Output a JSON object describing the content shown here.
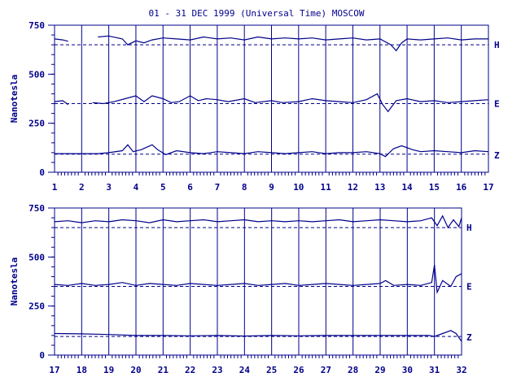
{
  "chart_data": {
    "type": "line",
    "title": "01 - 31 DEC 1999 (Universal Time) MOSCOW",
    "ylabel": "Nanotesla",
    "ylim": [
      0,
      750
    ],
    "yticks": [
      "0",
      "250",
      "500",
      "750"
    ],
    "y_minor_step": 50,
    "line_color": "#00008b",
    "grid": "vertical lines at each day",
    "panels": [
      {
        "xlim": [
          1,
          17
        ],
        "xticks": [
          "1",
          "2",
          "3",
          "4",
          "5",
          "6",
          "7",
          "8",
          "9",
          "10",
          "11",
          "12",
          "13",
          "14",
          "15",
          "16",
          "17"
        ],
        "series": [
          {
            "name": "H",
            "baseline": 650,
            "x": [
              1.0,
              1.3,
              1.5,
              1.6,
              2.6,
              3.0,
              3.5,
              3.7,
              4.0,
              4.3,
              4.6,
              5.0,
              5.5,
              6.0,
              6.5,
              7.0,
              7.5,
              8.0,
              8.5,
              9.0,
              9.5,
              10.0,
              10.5,
              11.0,
              11.5,
              12.0,
              12.5,
              13.0,
              13.4,
              13.6,
              13.8,
              14.0,
              14.5,
              15.0,
              15.5,
              16.0,
              16.5,
              17.0
            ],
            "values": [
              680,
              675,
              668,
              null,
              690,
              695,
              680,
              650,
              670,
              660,
              675,
              685,
              680,
              675,
              690,
              680,
              685,
              675,
              690,
              680,
              685,
              680,
              685,
              675,
              680,
              685,
              675,
              680,
              650,
              620,
              660,
              680,
              675,
              680,
              685,
              675,
              680,
              680
            ]
          },
          {
            "name": "E",
            "baseline": 350,
            "x": [
              1.0,
              1.3,
              1.5,
              1.6,
              2.4,
              2.8,
              3.2,
              3.6,
              4.0,
              4.3,
              4.6,
              5.0,
              5.3,
              5.6,
              6.0,
              6.3,
              6.6,
              7.0,
              7.4,
              8.0,
              8.4,
              9.0,
              9.4,
              10.0,
              10.5,
              11.0,
              11.5,
              12.0,
              12.5,
              12.9,
              13.1,
              13.3,
              13.6,
              14.0,
              14.5,
              15.0,
              15.5,
              16.0,
              16.5,
              17.0
            ],
            "values": [
              360,
              365,
              345,
              null,
              355,
              350,
              360,
              375,
              390,
              360,
              390,
              375,
              355,
              360,
              390,
              365,
              375,
              370,
              360,
              375,
              355,
              365,
              355,
              360,
              375,
              365,
              360,
              355,
              370,
              400,
              345,
              310,
              365,
              375,
              360,
              365,
              355,
              360,
              365,
              370
            ]
          },
          {
            "name": "Z",
            "baseline": 92,
            "x": [
              1.0,
              2.0,
              2.6,
              3.0,
              3.5,
              3.7,
              3.9,
              4.2,
              4.6,
              4.8,
              5.1,
              5.5,
              6.0,
              6.5,
              7.0,
              7.5,
              8.0,
              8.5,
              9.0,
              9.5,
              10.0,
              10.5,
              11.0,
              11.5,
              12.0,
              12.5,
              13.0,
              13.2,
              13.5,
              13.8,
              14.2,
              14.5,
              15.0,
              15.5,
              16.0,
              16.5,
              17.0
            ],
            "values": [
              95,
              95,
              95,
              100,
              110,
              140,
              105,
              115,
              140,
              115,
              90,
              110,
              100,
              95,
              105,
              100,
              95,
              105,
              100,
              95,
              100,
              105,
              95,
              100,
              100,
              105,
              95,
              80,
              120,
              135,
              115,
              105,
              110,
              105,
              100,
              110,
              105
            ]
          }
        ]
      },
      {
        "xlim": [
          17,
          32
        ],
        "xticks": [
          "17",
          "18",
          "19",
          "20",
          "21",
          "22",
          "23",
          "24",
          "25",
          "26",
          "27",
          "28",
          "29",
          "30",
          "31",
          "32"
        ],
        "series": [
          {
            "name": "H",
            "baseline": 650,
            "x": [
              17.0,
              17.5,
              18.0,
              18.5,
              19.0,
              19.5,
              20.0,
              20.5,
              21.0,
              21.5,
              22.0,
              22.5,
              23.0,
              23.5,
              24.0,
              24.5,
              25.0,
              25.5,
              26.0,
              26.5,
              27.0,
              27.5,
              28.0,
              28.5,
              29.0,
              29.5,
              30.0,
              30.5,
              30.9,
              31.1,
              31.3,
              31.5,
              31.7,
              31.9,
              32.0
            ],
            "values": [
              680,
              685,
              675,
              685,
              680,
              690,
              685,
              675,
              690,
              680,
              685,
              690,
              680,
              685,
              690,
              680,
              685,
              680,
              685,
              680,
              685,
              690,
              680,
              685,
              690,
              685,
              680,
              685,
              700,
              660,
              710,
              650,
              690,
              655,
              700
            ]
          },
          {
            "name": "E",
            "baseline": 350,
            "x": [
              17.0,
              17.5,
              18.0,
              18.5,
              19.0,
              19.5,
              20.0,
              20.5,
              21.0,
              21.5,
              22.0,
              22.5,
              23.0,
              23.5,
              24.0,
              24.5,
              25.0,
              25.5,
              26.0,
              26.5,
              27.0,
              27.5,
              28.0,
              28.5,
              29.0,
              29.2,
              29.5,
              30.0,
              30.5,
              30.9,
              31.0,
              31.1,
              31.3,
              31.6,
              31.8,
              32.0
            ],
            "values": [
              360,
              355,
              365,
              355,
              360,
              370,
              355,
              365,
              360,
              355,
              365,
              360,
              355,
              360,
              365,
              355,
              360,
              365,
              355,
              360,
              365,
              360,
              355,
              360,
              365,
              380,
              355,
              360,
              355,
              370,
              460,
              320,
              380,
              350,
              400,
              415
            ]
          },
          {
            "name": "Z",
            "baseline": 95,
            "x": [
              17.0,
              18.0,
              19.0,
              20.0,
              21.0,
              22.0,
              23.0,
              24.0,
              25.0,
              26.0,
              27.0,
              28.0,
              29.0,
              30.0,
              30.8,
              31.0,
              31.3,
              31.6,
              31.8,
              32.0
            ],
            "values": [
              110,
              108,
              105,
              100,
              100,
              98,
              100,
              97,
              100,
              98,
              100,
              100,
              100,
              100,
              100,
              95,
              110,
              125,
              110,
              70
            ]
          }
        ]
      }
    ]
  }
}
